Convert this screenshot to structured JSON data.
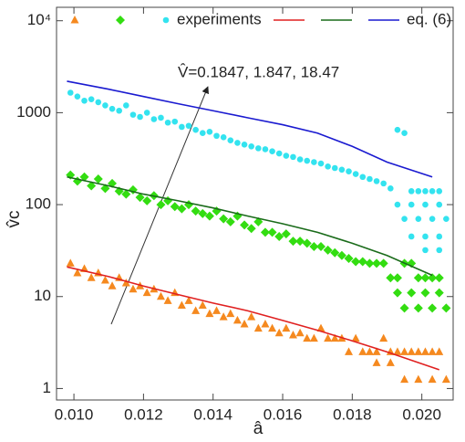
{
  "chart_data": {
    "type": "scatter",
    "xlabel": "â",
    "ylabel": "v̂c",
    "annotation": "V̂=0.1847, 1.847, 18.47",
    "xlim": [
      0.0095,
      0.0209
    ],
    "ylim": [
      0.75,
      14000
    ],
    "log_y": true,
    "xticks": [
      {
        "value": 0.01,
        "label": "0.010"
      },
      {
        "value": 0.012,
        "label": "0.012"
      },
      {
        "value": 0.014,
        "label": "0.014"
      },
      {
        "value": 0.016,
        "label": "0.016"
      },
      {
        "value": 0.018,
        "label": "0.018"
      },
      {
        "value": 0.02,
        "label": "0.020"
      }
    ],
    "yticks": [
      1,
      10,
      100,
      1000,
      {
        "value": 10000,
        "label": "10⁴"
      }
    ],
    "series": [
      {
        "name": "experiments",
        "markers": [
          {
            "shape": "triangle",
            "color": "#f5891f",
            "x": [
              0.0099,
              0.0101,
              0.0103,
              0.0105,
              0.0107,
              0.0109,
              0.0111,
              0.0113,
              0.0115,
              0.0117,
              0.0119,
              0.0121,
              0.0123,
              0.0125,
              0.0127,
              0.0129,
              0.0131,
              0.0133,
              0.0135,
              0.0137,
              0.0139,
              0.0141,
              0.0143,
              0.0145,
              0.0147,
              0.0149,
              0.0151,
              0.0153,
              0.0155,
              0.0157,
              0.0159,
              0.0161,
              0.0163,
              0.0165,
              0.0167,
              0.0169,
              0.0171,
              0.0173,
              0.0175,
              0.0177,
              0.0179,
              0.0181,
              0.0183,
              0.0185,
              0.0187,
              0.0189,
              0.0191,
              0.0193,
              0.0195,
              0.0197,
              0.0199,
              0.0201,
              0.0203,
              0.0205,
              0.0195,
              0.0199,
              0.0203,
              0.0207,
              0.0187,
              0.0191
            ],
            "values": [
              23,
              18,
              20,
              16,
              18,
              15,
              13,
              16,
              14,
              12,
              13,
              11,
              12,
              10,
              9,
              11,
              8,
              9,
              7,
              8,
              6.5,
              7,
              6,
              6.5,
              5.5,
              5,
              6,
              4.5,
              5,
              4.5,
              4,
              4.5,
              3.8,
              4,
              3.5,
              3.5,
              4.5,
              3.5,
              3.5,
              3.5,
              2.5,
              3.5,
              2.5,
              2.5,
              2.5,
              3.5,
              2.5,
              2.5,
              2.5,
              2.5,
              2.5,
              2.5,
              2.5,
              2.5,
              1.25,
              1.25,
              1.25,
              1.25,
              1.9,
              1.9
            ]
          },
          {
            "shape": "diamond",
            "color": "#33dd11",
            "x": [
              0.0099,
              0.0101,
              0.0103,
              0.0105,
              0.0107,
              0.0109,
              0.0111,
              0.0113,
              0.0115,
              0.0117,
              0.0119,
              0.0121,
              0.0123,
              0.0125,
              0.0127,
              0.0129,
              0.0131,
              0.0133,
              0.0135,
              0.0137,
              0.0139,
              0.0141,
              0.0143,
              0.0145,
              0.0147,
              0.0149,
              0.0151,
              0.0153,
              0.0155,
              0.0157,
              0.0159,
              0.0161,
              0.0163,
              0.0165,
              0.0167,
              0.0169,
              0.0171,
              0.0173,
              0.0175,
              0.0177,
              0.0179,
              0.0181,
              0.0183,
              0.0185,
              0.0187,
              0.0189,
              0.0191,
              0.0193,
              0.0195,
              0.0197,
              0.0199,
              0.0201,
              0.0203,
              0.0205,
              0.0193,
              0.0197,
              0.0201,
              0.0205,
              0.0195,
              0.0199,
              0.0203,
              0.0207
            ],
            "values": [
              210,
              180,
              200,
              160,
              190,
              150,
              170,
              140,
              130,
              145,
              120,
              110,
              125,
              100,
              110,
              95,
              90,
              100,
              85,
              80,
              75,
              85,
              70,
              65,
              75,
              60,
              55,
              65,
              50,
              50,
              45,
              48,
              40,
              40,
              38,
              35,
              35,
              32,
              30,
              28,
              26,
              24,
              24,
              23,
              23,
              23,
              16,
              16,
              23,
              23,
              16,
              16,
              16,
              16,
              11,
              11,
              11,
              11,
              7.5,
              7.5,
              7.5,
              7.5
            ]
          },
          {
            "shape": "circle",
            "color": "#33e3ef",
            "x": [
              0.0099,
              0.0101,
              0.0103,
              0.0105,
              0.0107,
              0.0109,
              0.0111,
              0.0113,
              0.0115,
              0.0117,
              0.0119,
              0.0121,
              0.0123,
              0.0125,
              0.0127,
              0.0129,
              0.0131,
              0.0133,
              0.0135,
              0.0137,
              0.0139,
              0.0141,
              0.0143,
              0.0145,
              0.0147,
              0.0149,
              0.0151,
              0.0153,
              0.0155,
              0.0157,
              0.0159,
              0.0161,
              0.0163,
              0.0165,
              0.0167,
              0.0169,
              0.0171,
              0.0173,
              0.0175,
              0.0177,
              0.0179,
              0.0181,
              0.0183,
              0.0185,
              0.0187,
              0.0189,
              0.0191,
              0.0193,
              0.0195,
              0.0197,
              0.0199,
              0.0201,
              0.0203,
              0.0205,
              0.0193,
              0.0197,
              0.0201,
              0.0205,
              0.0195,
              0.0199,
              0.0203,
              0.0207,
              0.0197,
              0.0201,
              0.0205,
              0.0201,
              0.0205
            ],
            "values": [
              1650,
              1500,
              1350,
              1400,
              1300,
              1200,
              1100,
              1050,
              1200,
              950,
              900,
              1000,
              850,
              880,
              780,
              800,
              700,
              720,
              650,
              600,
              620,
              560,
              540,
              500,
              470,
              450,
              430,
              410,
              400,
              380,
              360,
              340,
              330,
              310,
              300,
              290,
              280,
              260,
              250,
              240,
              230,
              215,
              200,
              190,
              180,
              170,
              150,
              650,
              600,
              140,
              140,
              140,
              140,
              140,
              100,
              100,
              100,
              100,
              70,
              70,
              70,
              70,
              45,
              45,
              45,
              32,
              32
            ]
          }
        ]
      },
      {
        "name": "eq. (6)",
        "lines": [
          {
            "color": "#e02020",
            "x": [
              0.0098,
              0.011,
              0.012,
              0.013,
              0.014,
              0.015,
              0.016,
              0.017,
              0.018,
              0.019,
              0.0205
            ],
            "values": [
              21,
              16.5,
              13,
              10.5,
              8.5,
              7,
              5.5,
              4.3,
              3.3,
              2.5,
              1.6
            ]
          },
          {
            "color": "#1a6b1a",
            "x": [
              0.0098,
              0.011,
              0.012,
              0.013,
              0.014,
              0.015,
              0.016,
              0.017,
              0.018,
              0.019,
              0.0203
            ],
            "values": [
              200,
              160,
              130,
              110,
              92,
              75,
              62,
              50,
              38,
              28,
              17
            ]
          },
          {
            "color": "#1a1ad0",
            "x": [
              0.0098,
              0.011,
              0.012,
              0.013,
              0.014,
              0.015,
              0.016,
              0.017,
              0.018,
              0.019,
              0.0203
            ],
            "values": [
              2200,
              1800,
              1500,
              1250,
              1050,
              880,
              740,
              600,
              430,
              290,
              200
            ]
          }
        ]
      }
    ]
  }
}
